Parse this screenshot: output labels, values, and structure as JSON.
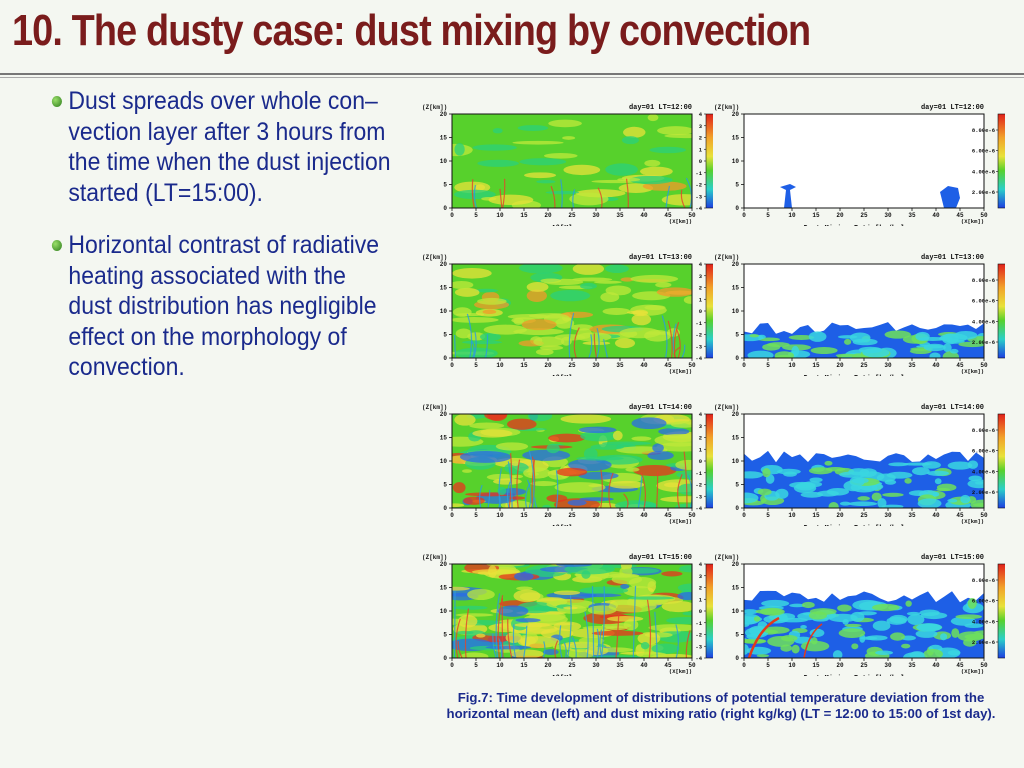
{
  "slide": {
    "title": "10. The dusty case: dust mixing by convection"
  },
  "bullets": [
    {
      "lines": [
        "Dust spreads over whole con–",
        "vection layer after 3 hours from",
        "the time when the dust injection",
        "started (LT=15:00)."
      ]
    },
    {
      "lines": [
        "Horizontal contrast of radiative",
        "heating associated with the",
        "dust distribution has negligible",
        "effect on the morphology of",
        "convection."
      ]
    }
  ],
  "panels": [
    {
      "left": {
        "ylabel": "Z[km]",
        "header": "day=01  LT=12:00",
        "xlabel": "Δθ[K]",
        "xunit": "X[km]"
      },
      "right": {
        "ylabel": "Z[km]",
        "header": "day=01  LT=12:00",
        "xlabel": "Dust Mixing Ratio[kg/kg]",
        "xunit": "X[km]"
      }
    },
    {
      "left": {
        "ylabel": "Z[km]",
        "header": "day=01  LT=13:00",
        "xlabel": "Δθ[K]",
        "xunit": "X[km]"
      },
      "right": {
        "ylabel": "Z[km]",
        "header": "day=01  LT=13:00",
        "xlabel": "Dust Mixing Ratio[kg/kg]",
        "xunit": "X[km]"
      }
    },
    {
      "left": {
        "ylabel": "Z[km]",
        "header": "day=01  LT=14:00",
        "xlabel": "Δθ[K]",
        "xunit": "X[km]"
      },
      "right": {
        "ylabel": "Z[km]",
        "header": "day=01  LT=14:00",
        "xlabel": "Dust Mixing Ratio[kg/kg]",
        "xunit": "X[km]"
      }
    },
    {
      "left": {
        "ylabel": "Z[km]",
        "header": "day=01  LT=15:00",
        "xlabel": "Δθ[K]",
        "xunit": "X[km]"
      },
      "right": {
        "ylabel": "Z[km]",
        "header": "day=01  LT=15:00",
        "xlabel": "Dust Mixing Ratio[kg/kg]",
        "xunit": "X[km]"
      }
    }
  ],
  "axes": {
    "x_ticks": [
      "0",
      "5",
      "10",
      "15",
      "20",
      "25",
      "30",
      "35",
      "40",
      "45",
      "50"
    ],
    "y_ticks": [
      "0",
      "5",
      "10",
      "15",
      "20"
    ],
    "left_colorbar_ticks": [
      "4",
      "3",
      "2",
      "1",
      "0",
      "-1",
      "-2",
      "-3",
      "-4"
    ],
    "right_colorbar_ticks": [
      "8.00e-6",
      "6.00e-6",
      "4.00e-6",
      "2.00e-6"
    ]
  },
  "caption": {
    "line1": "Fig.7: Time development of distributions of potential temperature deviation from the",
    "line2": "horizontal mean (left) and dust mixing ratio (right kg/kg) (LT = 12:00 to 15:00 of 1st day)."
  },
  "colors": {
    "title": "#7a1c1c",
    "text": "#1a2a8c",
    "background": "#f4f7f1",
    "field_green": "#4fcf2a",
    "field_blue": "#1e5fe6",
    "field_red": "#e02a1a"
  }
}
